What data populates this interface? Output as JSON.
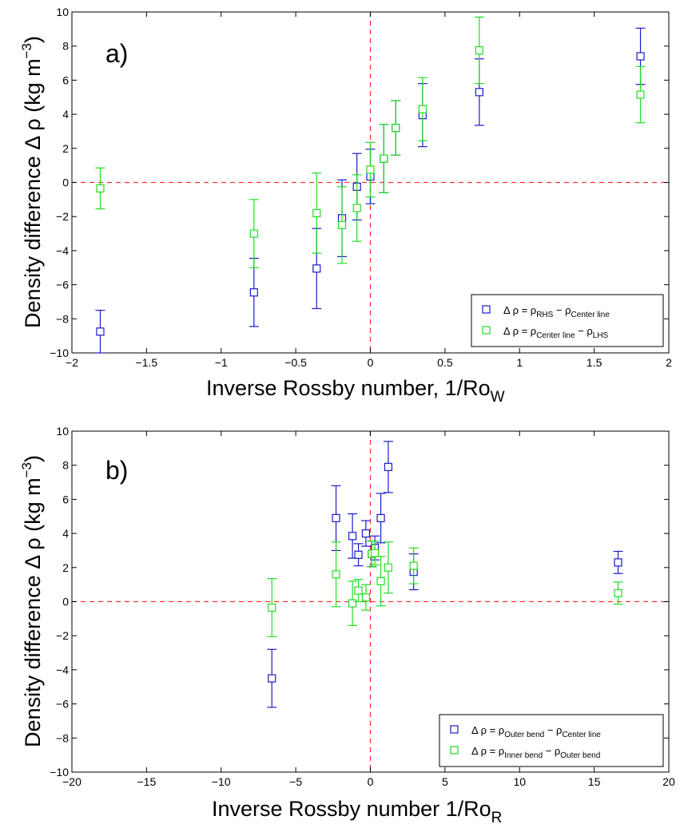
{
  "chart_data": [
    {
      "type": "scatter",
      "panel_label": "a)",
      "xlabel": "Inverse Rossby number, 1/Ro",
      "xlabel_sub": "W",
      "ylabel_main": "Density difference Δ ρ (kg m",
      "ylabel_sup": "−3",
      "ylabel_end": ")",
      "xlim": [
        -2,
        2
      ],
      "ylim": [
        -10,
        10
      ],
      "xticks": [
        -2,
        -1.5,
        -1,
        -0.5,
        0,
        0.5,
        1,
        1.5,
        2
      ],
      "xtick_labels": [
        "−2",
        "−1.5",
        "−1",
        "−0.5",
        "0",
        "0.5",
        "1",
        "1.5",
        "2"
      ],
      "yticks": [
        -10,
        -8,
        -6,
        -4,
        -2,
        0,
        2,
        4,
        6,
        8,
        10
      ],
      "ytick_labels": [
        "−10",
        "−8",
        "−6",
        "−4",
        "−2",
        "0",
        "2",
        "4",
        "6",
        "8",
        "10"
      ],
      "zero_lines": true,
      "legend_position": "bottom-right",
      "series": [
        {
          "legend_pre": "Δ ρ = ρ",
          "legend_sub1": "RHS",
          "legend_mid": " − ρ",
          "legend_sub2": "Center line",
          "color": "#1a1acc",
          "points": [
            {
              "x": -1.81,
              "y": -8.75,
              "err": 1.25
            },
            {
              "x": -0.78,
              "y": -6.45,
              "err": 2.0
            },
            {
              "x": -0.36,
              "y": -5.05,
              "err": 2.35
            },
            {
              "x": -0.19,
              "y": -2.1,
              "err": 2.25
            },
            {
              "x": -0.09,
              "y": -0.25,
              "err": 1.95
            },
            {
              "x": 0.0,
              "y": 0.35,
              "err": 1.6
            },
            {
              "x": 0.09,
              "y": 1.4,
              "err": 2.0
            },
            {
              "x": 0.17,
              "y": 3.2,
              "err": 1.6
            },
            {
              "x": 0.35,
              "y": 3.95,
              "err": 1.85
            },
            {
              "x": 0.73,
              "y": 5.3,
              "err": 1.95
            },
            {
              "x": 1.81,
              "y": 7.4,
              "err": 1.65
            }
          ]
        },
        {
          "legend_pre": "Δ ρ = ρ",
          "legend_sub1": "Center line",
          "legend_mid": " − ρ",
          "legend_sub2": "LHS",
          "color": "#22dd22",
          "points": [
            {
              "x": -1.81,
              "y": -0.35,
              "err": 1.2
            },
            {
              "x": -0.78,
              "y": -3.0,
              "err": 2.0
            },
            {
              "x": -0.36,
              "y": -1.8,
              "err": 2.35
            },
            {
              "x": -0.19,
              "y": -2.5,
              "err": 2.25
            },
            {
              "x": -0.09,
              "y": -1.5,
              "err": 1.95
            },
            {
              "x": 0.0,
              "y": 0.75,
              "err": 1.6
            },
            {
              "x": 0.09,
              "y": 1.4,
              "err": 2.0
            },
            {
              "x": 0.17,
              "y": 3.2,
              "err": 1.6
            },
            {
              "x": 0.35,
              "y": 4.3,
              "err": 1.85
            },
            {
              "x": 0.73,
              "y": 7.75,
              "err": 1.95
            },
            {
              "x": 1.81,
              "y": 5.15,
              "err": 1.65
            }
          ]
        }
      ]
    },
    {
      "type": "scatter",
      "panel_label": "b)",
      "xlabel": "Inverse Rossby number 1/Ro",
      "xlabel_sub": "R",
      "ylabel_main": "Density difference Δ ρ (kg m",
      "ylabel_sup": "−3",
      "ylabel_end": ")",
      "xlim": [
        -20,
        20
      ],
      "ylim": [
        -10,
        10
      ],
      "xticks": [
        -20,
        -15,
        -10,
        -5,
        0,
        5,
        10,
        15,
        20
      ],
      "xtick_labels": [
        "−20",
        "−15",
        "−10",
        "−5",
        "0",
        "5",
        "10",
        "15",
        "20"
      ],
      "yticks": [
        -10,
        -8,
        -6,
        -4,
        -2,
        0,
        2,
        4,
        6,
        8,
        10
      ],
      "ytick_labels": [
        "−10",
        "−8",
        "−6",
        "−4",
        "−2",
        "0",
        "2",
        "4",
        "6",
        "8",
        "10"
      ],
      "zero_lines": true,
      "legend_position": "bottom-right",
      "series": [
        {
          "legend_pre": "Δ ρ = ρ",
          "legend_sub1": "Outer bend",
          "legend_mid": " − ρ",
          "legend_sub2": "Center line",
          "color": "#1a1acc",
          "points": [
            {
              "x": -6.6,
              "y": -4.5,
              "err": 1.7
            },
            {
              "x": -2.3,
              "y": 4.9,
              "err": 1.9
            },
            {
              "x": -1.2,
              "y": 3.85,
              "err": 1.3
            },
            {
              "x": -0.8,
              "y": 2.75,
              "err": 0.65
            },
            {
              "x": -0.3,
              "y": 4.0,
              "err": 0.75
            },
            {
              "x": 0.1,
              "y": 2.8,
              "err": 0.75
            },
            {
              "x": 0.3,
              "y": 3.15,
              "err": 0.7
            },
            {
              "x": 0.7,
              "y": 4.9,
              "err": 1.45
            },
            {
              "x": 1.2,
              "y": 7.9,
              "err": 1.5
            },
            {
              "x": 2.9,
              "y": 1.75,
              "err": 1.05
            },
            {
              "x": 16.6,
              "y": 2.3,
              "err": 0.65
            }
          ]
        },
        {
          "legend_pre": "Δ ρ = ρ",
          "legend_sub1": "Inner bend",
          "legend_mid": " − ρ",
          "legend_sub2": "Outer bend",
          "color": "#22dd22",
          "points": [
            {
              "x": -6.6,
              "y": -0.35,
              "err": 1.7
            },
            {
              "x": -2.3,
              "y": 1.6,
              "err": 1.9
            },
            {
              "x": -1.2,
              "y": -0.1,
              "err": 1.3
            },
            {
              "x": -0.8,
              "y": 0.65,
              "err": 0.65
            },
            {
              "x": -0.3,
              "y": 0.25,
              "err": 0.75
            },
            {
              "x": 0.1,
              "y": 2.8,
              "err": 0.75
            },
            {
              "x": 0.3,
              "y": 2.85,
              "err": 0.7
            },
            {
              "x": 0.7,
              "y": 1.2,
              "err": 1.45
            },
            {
              "x": 1.2,
              "y": 2.0,
              "err": 1.5
            },
            {
              "x": 2.9,
              "y": 2.1,
              "err": 1.05
            },
            {
              "x": 16.6,
              "y": 0.5,
              "err": 0.65
            }
          ]
        }
      ]
    }
  ]
}
